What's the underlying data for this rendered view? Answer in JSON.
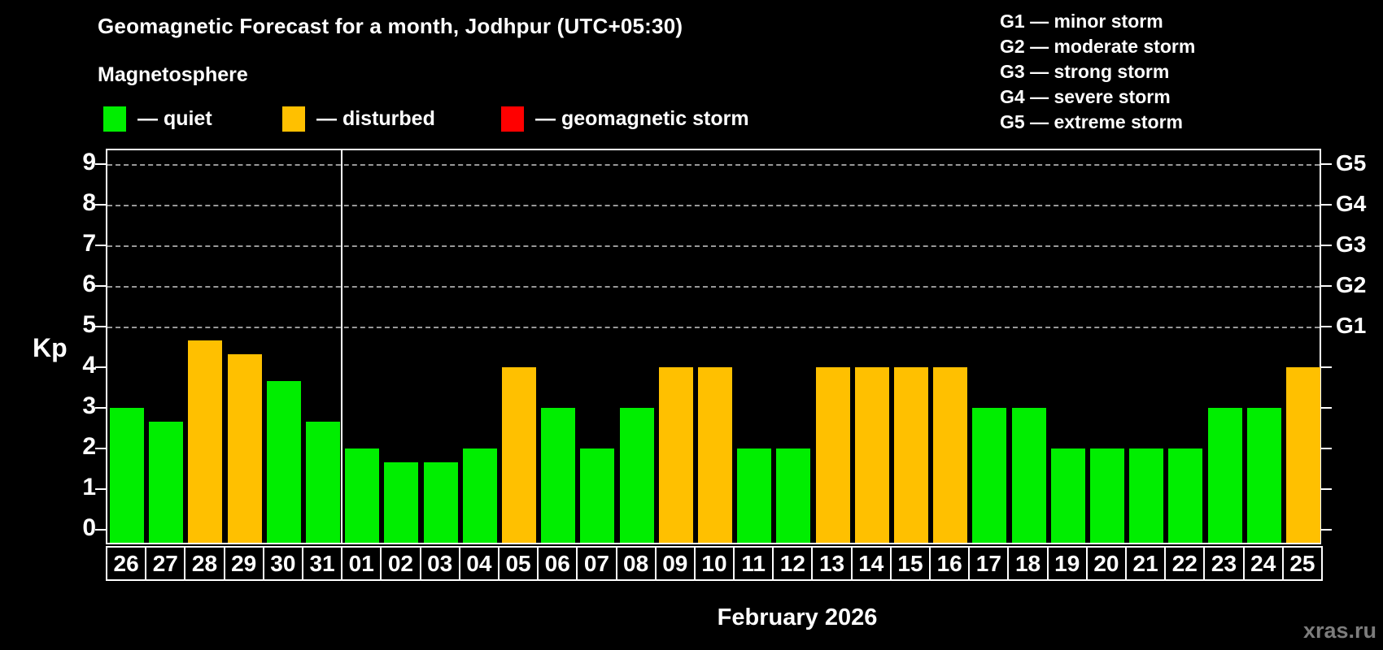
{
  "header": {
    "title": "Geomagnetic Forecast for a month, Jodhpur (UTC+05:30)",
    "subtitle": "Magnetosphere"
  },
  "legend": [
    {
      "key": "quiet",
      "dash": "—",
      "label": "quiet",
      "color": "#00EE00"
    },
    {
      "key": "disturbed",
      "dash": "—",
      "label": "disturbed",
      "color": "#FFC000"
    },
    {
      "key": "storm",
      "dash": "—",
      "label": "geomagnetic storm",
      "color": "#FF0000"
    }
  ],
  "g_scale_legend": [
    {
      "code": "G1",
      "dash": "—",
      "label": "minor storm"
    },
    {
      "code": "G2",
      "dash": "—",
      "label": "moderate storm"
    },
    {
      "code": "G3",
      "dash": "—",
      "label": "strong storm"
    },
    {
      "code": "G4",
      "dash": "—",
      "label": "severe storm"
    },
    {
      "code": "G5",
      "dash": "—",
      "label": "extreme storm"
    }
  ],
  "y_axis": {
    "label": "Kp",
    "ticks": [
      0,
      1,
      2,
      3,
      4,
      5,
      6,
      7,
      8,
      9
    ]
  },
  "right_axis": [
    {
      "code": "G1",
      "kp": 5
    },
    {
      "code": "G2",
      "kp": 6
    },
    {
      "code": "G3",
      "kp": 7
    },
    {
      "code": "G4",
      "kp": 8
    },
    {
      "code": "G5",
      "kp": 9
    }
  ],
  "x_axis": {
    "month_label": "February 2026"
  },
  "watermark": "xras.ru",
  "chart_data": {
    "type": "bar",
    "title": "Geomagnetic Forecast for a month, Jodhpur (UTC+05:30)",
    "xlabel": "February 2026",
    "ylabel": "Kp",
    "ylim": [
      0,
      9.4
    ],
    "yticks": [
      0,
      1,
      2,
      3,
      4,
      5,
      6,
      7,
      8,
      9
    ],
    "gridlines_at_kp": [
      5,
      6,
      7,
      8,
      9
    ],
    "grid": "dashed-upper-only",
    "legend_position": "top",
    "month_separator_after_index": 5,
    "state_colors": {
      "quiet": "#00EE00",
      "disturbed": "#FFC000",
      "storm": "#FF0000"
    },
    "bars": [
      {
        "day": "26",
        "kp": 3.0,
        "state": "quiet"
      },
      {
        "day": "27",
        "kp": 2.67,
        "state": "quiet"
      },
      {
        "day": "28",
        "kp": 4.67,
        "state": "disturbed"
      },
      {
        "day": "29",
        "kp": 4.33,
        "state": "disturbed"
      },
      {
        "day": "30",
        "kp": 3.67,
        "state": "quiet"
      },
      {
        "day": "31",
        "kp": 2.67,
        "state": "quiet"
      },
      {
        "day": "01",
        "kp": 2.0,
        "state": "quiet"
      },
      {
        "day": "02",
        "kp": 1.67,
        "state": "quiet"
      },
      {
        "day": "03",
        "kp": 1.67,
        "state": "quiet"
      },
      {
        "day": "04",
        "kp": 2.0,
        "state": "quiet"
      },
      {
        "day": "05",
        "kp": 4.0,
        "state": "disturbed"
      },
      {
        "day": "06",
        "kp": 3.0,
        "state": "quiet"
      },
      {
        "day": "07",
        "kp": 2.0,
        "state": "quiet"
      },
      {
        "day": "08",
        "kp": 3.0,
        "state": "quiet"
      },
      {
        "day": "09",
        "kp": 4.0,
        "state": "disturbed"
      },
      {
        "day": "10",
        "kp": 4.0,
        "state": "disturbed"
      },
      {
        "day": "11",
        "kp": 2.0,
        "state": "quiet"
      },
      {
        "day": "12",
        "kp": 2.0,
        "state": "quiet"
      },
      {
        "day": "13",
        "kp": 4.0,
        "state": "disturbed"
      },
      {
        "day": "14",
        "kp": 4.0,
        "state": "disturbed"
      },
      {
        "day": "15",
        "kp": 4.0,
        "state": "disturbed"
      },
      {
        "day": "16",
        "kp": 4.0,
        "state": "disturbed"
      },
      {
        "day": "17",
        "kp": 3.0,
        "state": "quiet"
      },
      {
        "day": "18",
        "kp": 3.0,
        "state": "quiet"
      },
      {
        "day": "19",
        "kp": 2.0,
        "state": "quiet"
      },
      {
        "day": "20",
        "kp": 2.0,
        "state": "quiet"
      },
      {
        "day": "21",
        "kp": 2.0,
        "state": "quiet"
      },
      {
        "day": "22",
        "kp": 2.0,
        "state": "quiet"
      },
      {
        "day": "23",
        "kp": 3.0,
        "state": "quiet"
      },
      {
        "day": "24",
        "kp": 3.0,
        "state": "quiet"
      },
      {
        "day": "25",
        "kp": 4.0,
        "state": "disturbed"
      }
    ]
  }
}
